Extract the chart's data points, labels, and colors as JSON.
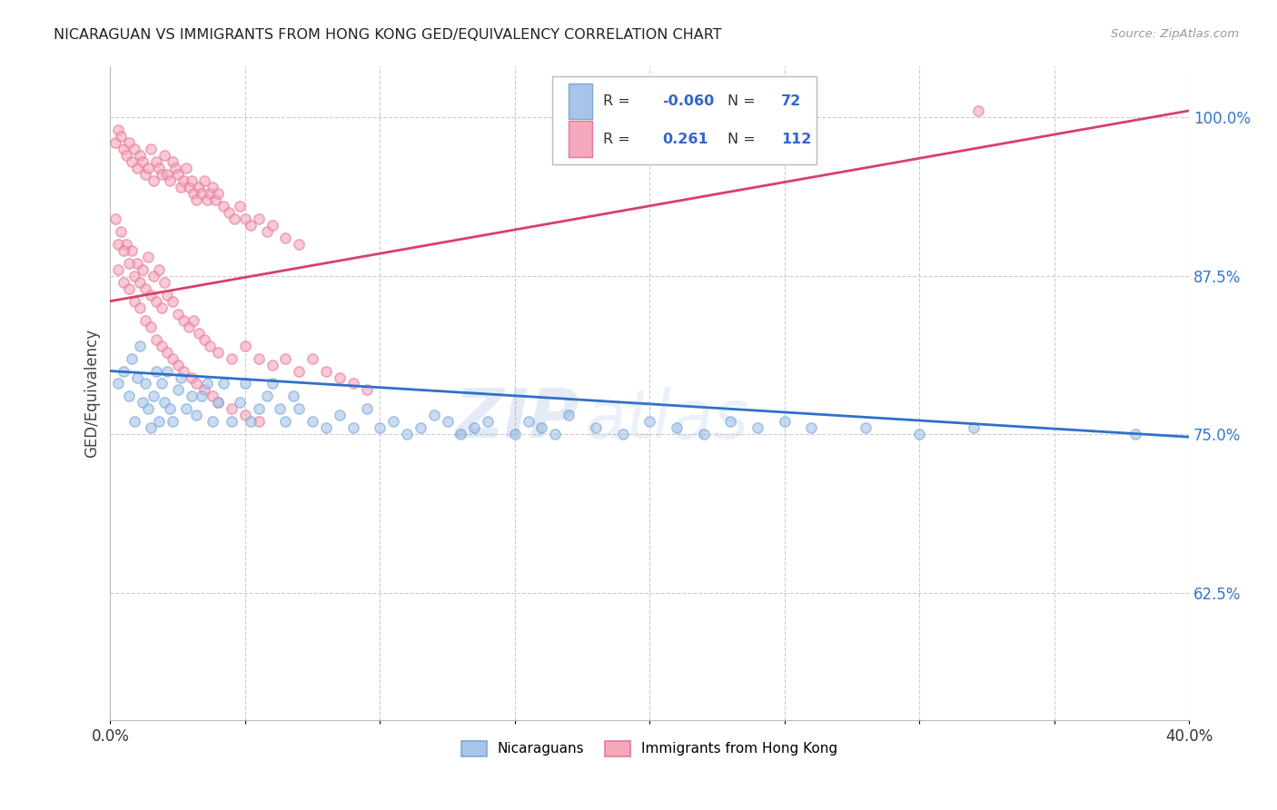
{
  "title": "NICARAGUAN VS IMMIGRANTS FROM HONG KONG GED/EQUIVALENCY CORRELATION CHART",
  "source": "Source: ZipAtlas.com",
  "ylabel": "GED/Equivalency",
  "xlim": [
    0.0,
    0.4
  ],
  "ylim": [
    0.525,
    1.04
  ],
  "yticks": [
    0.625,
    0.75,
    0.875,
    1.0
  ],
  "ytick_labels": [
    "62.5%",
    "75.0%",
    "87.5%",
    "100.0%"
  ],
  "xticks": [
    0.0,
    0.05,
    0.1,
    0.15,
    0.2,
    0.25,
    0.3,
    0.35,
    0.4
  ],
  "xtick_labels": [
    "0.0%",
    "",
    "",
    "",
    "",
    "",
    "",
    "",
    "40.0%"
  ],
  "blue_color": "#a8c4e8",
  "pink_color": "#f4a8bc",
  "blue_edge": "#7aaad4",
  "pink_edge": "#e87898",
  "trend_blue": "#3070c8",
  "trend_pink": "#d84068",
  "legend_label_blue": "Nicaraguans",
  "legend_label_pink": "Immigrants from Hong Kong",
  "watermark_zip": "ZIP",
  "watermark_atlas": "atlas",
  "blue_line_x0": 0.0,
  "blue_line_y0": 0.8,
  "blue_line_x1": 0.4,
  "blue_line_y1": 0.748,
  "pink_line_x0": 0.0,
  "pink_line_y0": 0.855,
  "pink_line_x1": 0.4,
  "pink_line_y1": 1.005,
  "blue_points_x": [
    0.003,
    0.005,
    0.007,
    0.008,
    0.009,
    0.01,
    0.011,
    0.012,
    0.013,
    0.014,
    0.015,
    0.016,
    0.017,
    0.018,
    0.019,
    0.02,
    0.021,
    0.022,
    0.023,
    0.025,
    0.026,
    0.028,
    0.03,
    0.032,
    0.034,
    0.036,
    0.038,
    0.04,
    0.042,
    0.045,
    0.048,
    0.05,
    0.052,
    0.055,
    0.058,
    0.06,
    0.063,
    0.065,
    0.068,
    0.07,
    0.075,
    0.08,
    0.085,
    0.09,
    0.095,
    0.1,
    0.105,
    0.11,
    0.115,
    0.12,
    0.125,
    0.13,
    0.135,
    0.14,
    0.15,
    0.155,
    0.16,
    0.165,
    0.17,
    0.18,
    0.19,
    0.2,
    0.21,
    0.22,
    0.23,
    0.24,
    0.25,
    0.26,
    0.28,
    0.3,
    0.32,
    0.38
  ],
  "blue_points_y": [
    0.79,
    0.8,
    0.78,
    0.81,
    0.76,
    0.795,
    0.82,
    0.775,
    0.79,
    0.77,
    0.755,
    0.78,
    0.8,
    0.76,
    0.79,
    0.775,
    0.8,
    0.77,
    0.76,
    0.785,
    0.795,
    0.77,
    0.78,
    0.765,
    0.78,
    0.79,
    0.76,
    0.775,
    0.79,
    0.76,
    0.775,
    0.79,
    0.76,
    0.77,
    0.78,
    0.79,
    0.77,
    0.76,
    0.78,
    0.77,
    0.76,
    0.755,
    0.765,
    0.755,
    0.77,
    0.755,
    0.76,
    0.75,
    0.755,
    0.765,
    0.76,
    0.75,
    0.755,
    0.76,
    0.75,
    0.76,
    0.755,
    0.75,
    0.765,
    0.755,
    0.75,
    0.76,
    0.755,
    0.75,
    0.76,
    0.755,
    0.76,
    0.755,
    0.755,
    0.75,
    0.755,
    0.75
  ],
  "pink_points_x": [
    0.002,
    0.003,
    0.004,
    0.005,
    0.006,
    0.007,
    0.008,
    0.009,
    0.01,
    0.011,
    0.012,
    0.013,
    0.014,
    0.015,
    0.016,
    0.017,
    0.018,
    0.019,
    0.02,
    0.021,
    0.022,
    0.023,
    0.024,
    0.025,
    0.026,
    0.027,
    0.028,
    0.029,
    0.03,
    0.031,
    0.032,
    0.033,
    0.034,
    0.035,
    0.036,
    0.037,
    0.038,
    0.039,
    0.04,
    0.042,
    0.044,
    0.046,
    0.048,
    0.05,
    0.052,
    0.055,
    0.058,
    0.06,
    0.065,
    0.07,
    0.002,
    0.004,
    0.006,
    0.008,
    0.01,
    0.012,
    0.014,
    0.016,
    0.018,
    0.02,
    0.003,
    0.005,
    0.007,
    0.009,
    0.011,
    0.013,
    0.015,
    0.017,
    0.019,
    0.021,
    0.023,
    0.025,
    0.027,
    0.029,
    0.031,
    0.033,
    0.035,
    0.037,
    0.04,
    0.045,
    0.05,
    0.055,
    0.06,
    0.065,
    0.07,
    0.075,
    0.08,
    0.085,
    0.09,
    0.095,
    0.003,
    0.005,
    0.007,
    0.009,
    0.011,
    0.013,
    0.015,
    0.017,
    0.019,
    0.021,
    0.023,
    0.025,
    0.027,
    0.03,
    0.032,
    0.035,
    0.038,
    0.04,
    0.045,
    0.05,
    0.055,
    0.322
  ],
  "pink_points_y": [
    0.98,
    0.99,
    0.985,
    0.975,
    0.97,
    0.98,
    0.965,
    0.975,
    0.96,
    0.97,
    0.965,
    0.955,
    0.96,
    0.975,
    0.95,
    0.965,
    0.96,
    0.955,
    0.97,
    0.955,
    0.95,
    0.965,
    0.96,
    0.955,
    0.945,
    0.95,
    0.96,
    0.945,
    0.95,
    0.94,
    0.935,
    0.945,
    0.94,
    0.95,
    0.935,
    0.94,
    0.945,
    0.935,
    0.94,
    0.93,
    0.925,
    0.92,
    0.93,
    0.92,
    0.915,
    0.92,
    0.91,
    0.915,
    0.905,
    0.9,
    0.92,
    0.91,
    0.9,
    0.895,
    0.885,
    0.88,
    0.89,
    0.875,
    0.88,
    0.87,
    0.9,
    0.895,
    0.885,
    0.875,
    0.87,
    0.865,
    0.86,
    0.855,
    0.85,
    0.86,
    0.855,
    0.845,
    0.84,
    0.835,
    0.84,
    0.83,
    0.825,
    0.82,
    0.815,
    0.81,
    0.82,
    0.81,
    0.805,
    0.81,
    0.8,
    0.81,
    0.8,
    0.795,
    0.79,
    0.785,
    0.88,
    0.87,
    0.865,
    0.855,
    0.85,
    0.84,
    0.835,
    0.825,
    0.82,
    0.815,
    0.81,
    0.805,
    0.8,
    0.795,
    0.79,
    0.785,
    0.78,
    0.775,
    0.77,
    0.765,
    0.76,
    1.005
  ],
  "marker_size": 65,
  "marker_linewidth": 1.2,
  "alpha": 0.6
}
